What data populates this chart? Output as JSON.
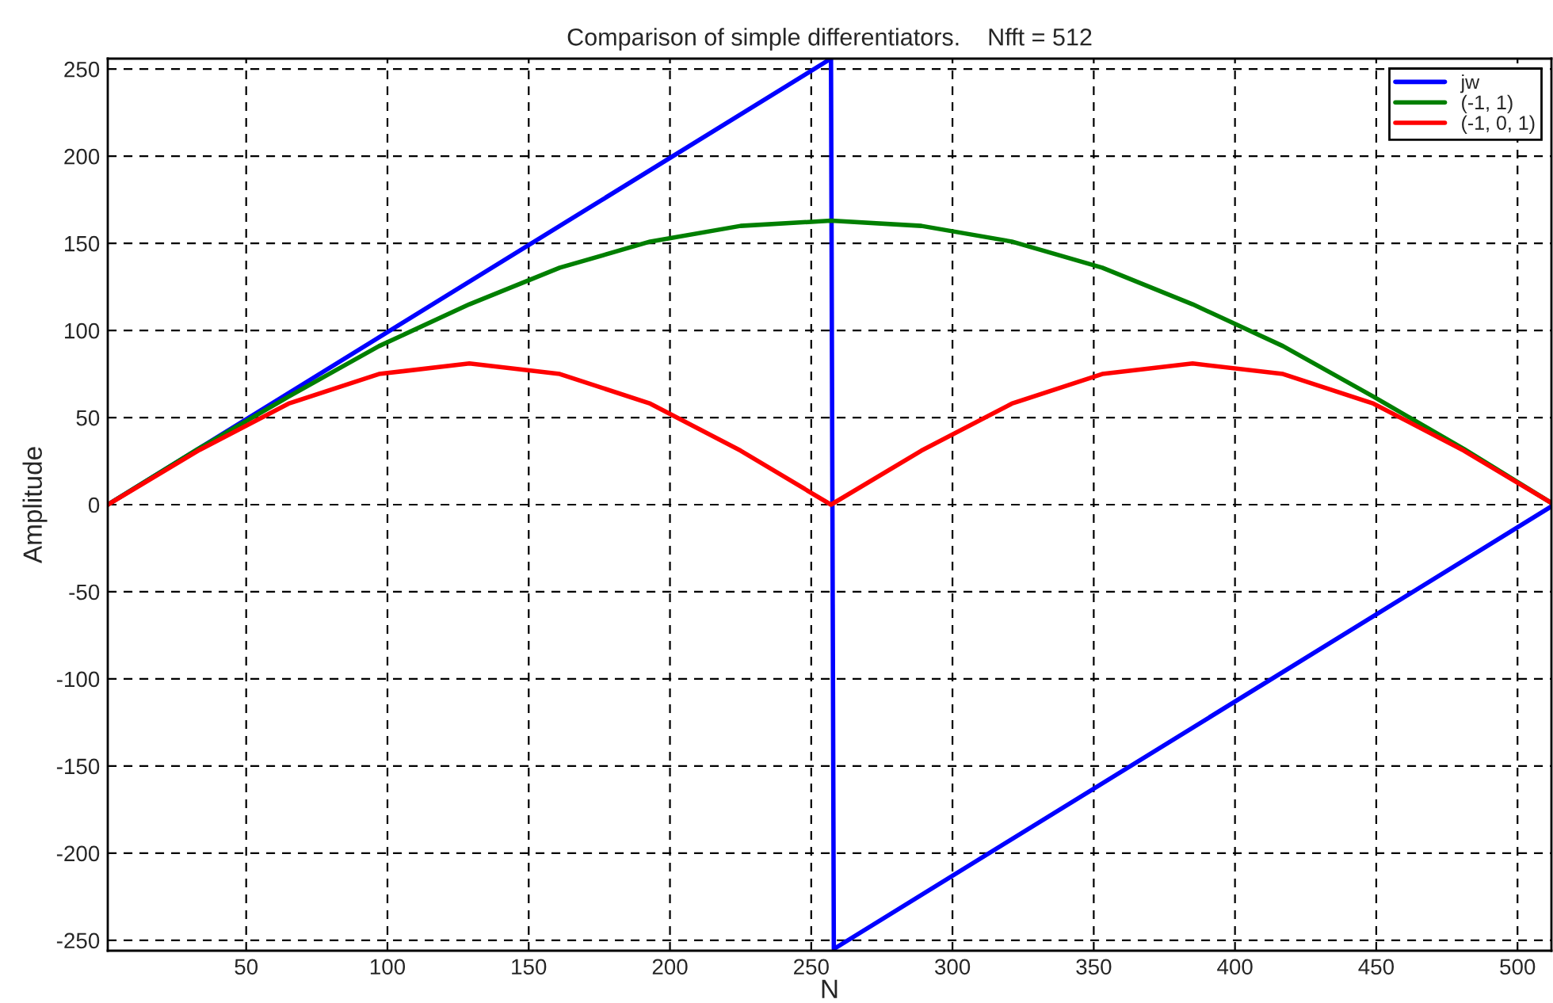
{
  "chart_data": {
    "type": "line",
    "title": "Comparison of simple differentiators.    Nfft = 512",
    "xlabel": "N",
    "ylabel": "Amplitude",
    "xlim": [
      1,
      512
    ],
    "ylim": [
      -256,
      256
    ],
    "xticks": [
      50,
      100,
      150,
      200,
      250,
      300,
      350,
      400,
      450,
      500
    ],
    "yticks": [
      -250,
      -200,
      -150,
      -100,
      -50,
      0,
      50,
      100,
      150,
      200,
      250
    ],
    "grid": true,
    "legend": "top right",
    "line_style": "solid",
    "marker": "none",
    "series": [
      {
        "name": "jw",
        "color": "#0000ff",
        "x": [
          1,
          257,
          258,
          512
        ],
        "values": [
          0,
          256,
          -255,
          -1
        ]
      },
      {
        "name": "(-1, 1)",
        "color": "#007f00",
        "x": [
          1,
          33,
          65,
          97,
          129,
          161,
          193,
          225,
          257,
          289,
          321,
          353,
          385,
          417,
          449,
          481,
          512
        ],
        "values": [
          0,
          32,
          62,
          91,
          115,
          136,
          151,
          160,
          163,
          160,
          151,
          136,
          115,
          91,
          62,
          32,
          1
        ]
      },
      {
        "name": "(-1, 0, 1)",
        "color": "#ff0000",
        "x": [
          1,
          33,
          65,
          97,
          129,
          161,
          193,
          225,
          257,
          289,
          321,
          353,
          385,
          417,
          449,
          481,
          512
        ],
        "values": [
          0,
          31,
          58,
          75,
          81,
          75,
          58,
          31,
          0,
          31,
          58,
          75,
          81,
          75,
          58,
          31,
          1
        ]
      }
    ]
  }
}
